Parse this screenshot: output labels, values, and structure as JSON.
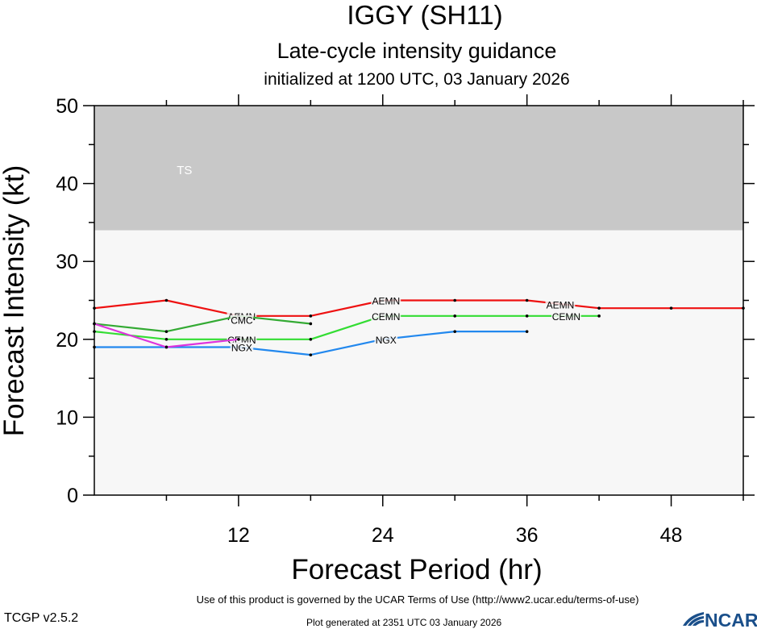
{
  "chart_data": {
    "type": "line",
    "title": "IGGY (SH11)",
    "subtitle": "Late-cycle intensity guidance",
    "subtitle2": "initialized at 1200 UTC, 03 January 2026",
    "xlabel": "Forecast Period (hr)",
    "ylabel": "Forecast Intensity (kt)",
    "xlim": [
      0,
      54
    ],
    "ylim": [
      0,
      50
    ],
    "xticks": [
      12,
      24,
      36,
      48
    ],
    "yticks": [
      0,
      10,
      20,
      30,
      40,
      50
    ],
    "grid": false,
    "bands": [
      {
        "label": "TS",
        "y0": 34,
        "y1": 50,
        "color": "#c8c8c8"
      }
    ],
    "series": [
      {
        "name": "AEMN",
        "color": "#ee1111",
        "x": [
          0,
          6,
          12,
          18,
          24,
          30,
          36,
          42,
          48,
          54
        ],
        "y": [
          24,
          25,
          23,
          23,
          25,
          25,
          25,
          24,
          24,
          24
        ],
        "labels": [
          {
            "x": 12,
            "y": 23,
            "text": "AEMN"
          },
          {
            "x": 24,
            "y": 25,
            "text": "AEMN"
          },
          {
            "x": 38.5,
            "y": 24.5,
            "text": "AEMN"
          }
        ]
      },
      {
        "name": "CEMN",
        "color": "#33dd33",
        "x": [
          0,
          6,
          12,
          18,
          24,
          30,
          36,
          42
        ],
        "y": [
          21,
          20,
          20,
          20,
          23,
          23,
          23,
          23
        ],
        "labels": [
          {
            "x": 12,
            "y": 20,
            "text": "CEMN"
          },
          {
            "x": 24,
            "y": 23,
            "text": "CEMN"
          },
          {
            "x": 39,
            "y": 23,
            "text": "CEMN"
          }
        ]
      },
      {
        "name": "CMC",
        "color": "#33aa33",
        "x": [
          0,
          6,
          12,
          18
        ],
        "y": [
          22,
          21,
          23,
          22
        ],
        "labels": [
          {
            "x": 12,
            "y": 22.5,
            "text": "CMC"
          }
        ]
      },
      {
        "name": "NGX",
        "color": "#2288ee",
        "x": [
          0,
          6,
          12,
          18,
          24,
          30,
          36
        ],
        "y": [
          19,
          19,
          19,
          18,
          20,
          21,
          21
        ],
        "labels": [
          {
            "x": 12,
            "y": 19,
            "text": "NGX"
          },
          {
            "x": 24,
            "y": 20,
            "text": "NGX"
          }
        ]
      },
      {
        "name": "",
        "color": "#dd33dd",
        "x": [
          0,
          6,
          12
        ],
        "y": [
          22,
          19,
          20
        ],
        "labels": []
      }
    ]
  },
  "footer": {
    "terms": "Use of this product is governed by the UCAR Terms of Use (http://www2.ucar.edu/terms-of-use)",
    "version": "TCGP v2.5.2",
    "generated": "Plot generated at 2351 UTC   03 January 2026",
    "logo_text": "NCAR"
  },
  "colors": {
    "axis": "#000000",
    "plot_background": "#f7f7f7",
    "band_label": "#ffffff",
    "logo_blue": "#1a4f8a"
  }
}
